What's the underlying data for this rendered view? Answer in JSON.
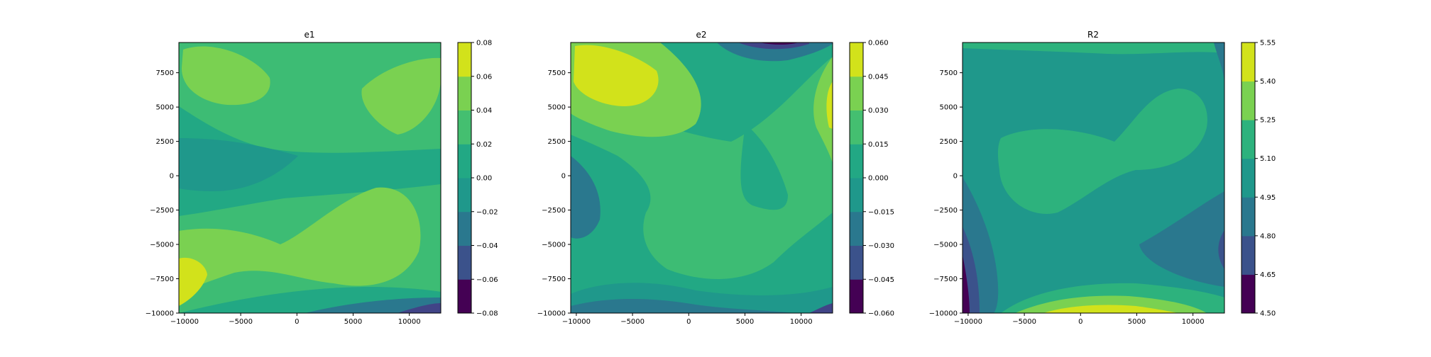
{
  "chart_data": [
    {
      "type": "contour",
      "title": "e1",
      "xlabel": "",
      "ylabel": "",
      "xlim": [
        -10500,
        12800
      ],
      "ylim": [
        -10000,
        9700
      ],
      "xticks": [
        -10000,
        -5000,
        0,
        5000,
        10000
      ],
      "xtick_labels": [
        "−10000",
        "−5000",
        "0",
        "5000",
        "10000"
      ],
      "yticks": [
        -10000,
        -7500,
        -5000,
        -2500,
        0,
        2500,
        5000,
        7500
      ],
      "ytick_labels": [
        "−10000",
        "−7500",
        "−5000",
        "−2500",
        "0",
        "2500",
        "5000",
        "7500"
      ],
      "levels": [
        -0.08,
        -0.06,
        -0.04,
        -0.02,
        0.0,
        0.02,
        0.04,
        0.06,
        0.08
      ],
      "colorbar_tick_labels": [
        "−0.08",
        "−0.06",
        "−0.04",
        "−0.02",
        "0.00",
        "0.02",
        "0.04",
        "0.06",
        "0.08"
      ],
      "colormap": "viridis",
      "grid": false
    },
    {
      "type": "contour",
      "title": "e2",
      "xlabel": "",
      "ylabel": "",
      "xlim": [
        -10500,
        12800
      ],
      "ylim": [
        -10000,
        9700
      ],
      "xticks": [
        -10000,
        -5000,
        0,
        5000,
        10000
      ],
      "xtick_labels": [
        "−10000",
        "−5000",
        "0",
        "5000",
        "10000"
      ],
      "yticks": [
        -10000,
        -7500,
        -5000,
        -2500,
        0,
        2500,
        5000,
        7500
      ],
      "ytick_labels": [
        "−10000",
        "−7500",
        "−5000",
        "−2500",
        "0",
        "2500",
        "5000",
        "7500"
      ],
      "levels": [
        -0.06,
        -0.045,
        -0.03,
        -0.015,
        0.0,
        0.015,
        0.03,
        0.045,
        0.06
      ],
      "colorbar_tick_labels": [
        "−0.060",
        "−0.045",
        "−0.030",
        "−0.015",
        "0.000",
        "0.015",
        "0.030",
        "0.045",
        "0.060"
      ],
      "colormap": "viridis",
      "grid": false
    },
    {
      "type": "contour",
      "title": "R2",
      "xlabel": "",
      "ylabel": "",
      "xlim": [
        -10500,
        12800
      ],
      "ylim": [
        -10000,
        9700
      ],
      "xticks": [
        -10000,
        -5000,
        0,
        5000,
        10000
      ],
      "xtick_labels": [
        "−10000",
        "−5000",
        "0",
        "5000",
        "10000"
      ],
      "yticks": [
        -10000,
        -7500,
        -5000,
        -2500,
        0,
        2500,
        5000,
        7500
      ],
      "ytick_labels": [
        "−10000",
        "−7500",
        "−5000",
        "−2500",
        "0",
        "2500",
        "5000",
        "7500"
      ],
      "levels": [
        4.5,
        4.65,
        4.8,
        4.95,
        5.1,
        5.25,
        5.4,
        5.55
      ],
      "colorbar_tick_labels": [
        "4.50",
        "4.65",
        "4.80",
        "4.95",
        "5.10",
        "5.25",
        "5.40",
        "5.55"
      ],
      "colormap": "viridis",
      "grid": false
    }
  ]
}
